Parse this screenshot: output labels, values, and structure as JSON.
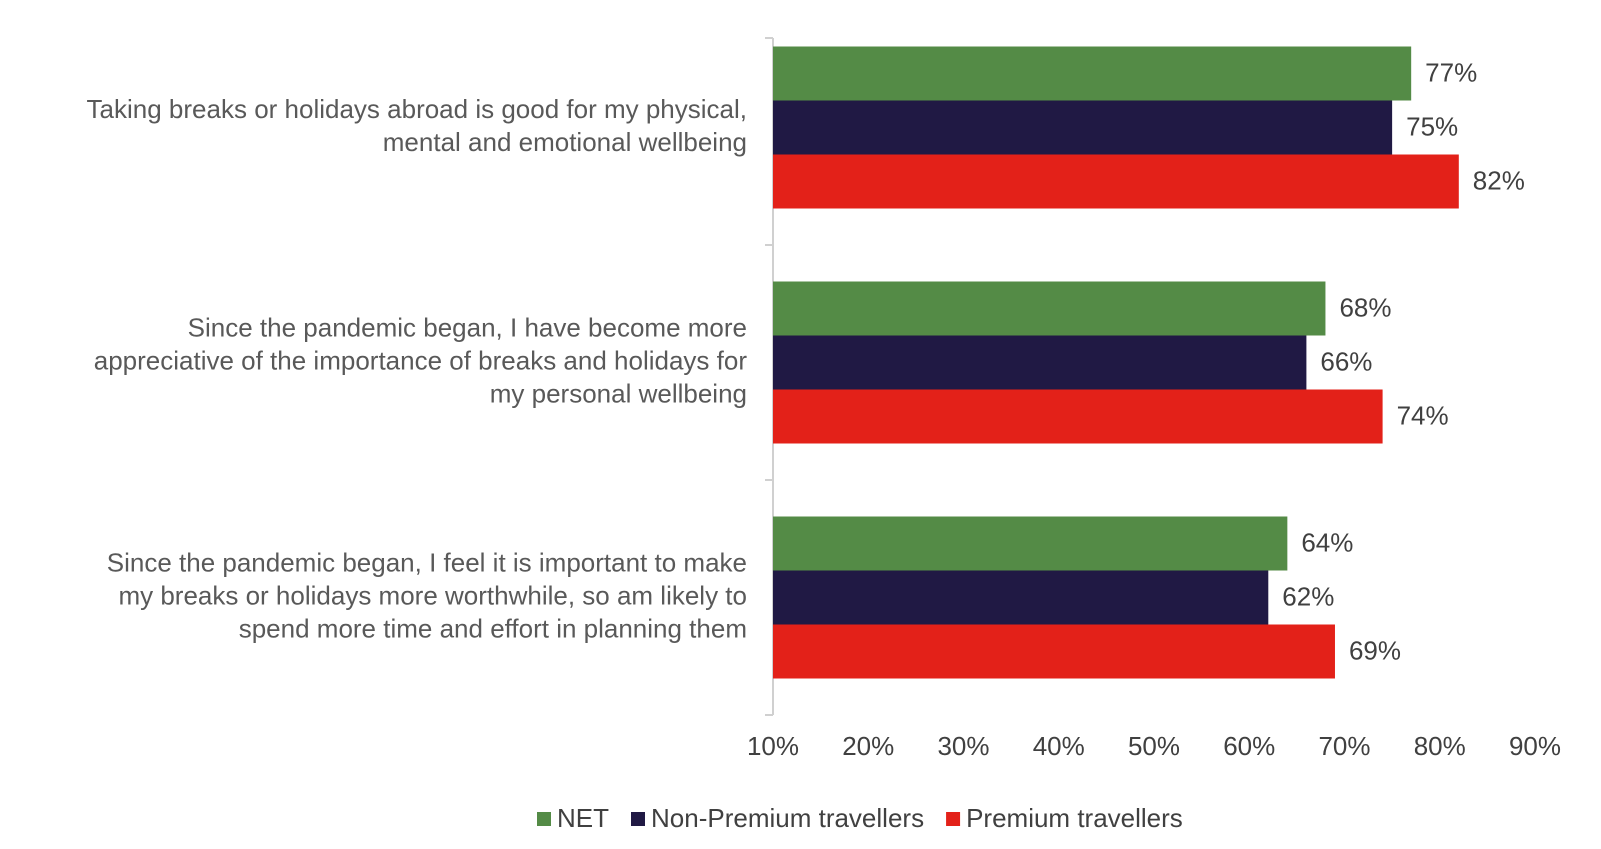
{
  "chart_data": {
    "type": "hbar",
    "categories": [
      [
        "Taking breaks or holidays abroad is good for my physical,",
        "mental and emotional wellbeing"
      ],
      [
        "Since the pandemic began, I have become more",
        "appreciative of the importance of breaks and holidays for",
        "my personal wellbeing"
      ],
      [
        "Since the pandemic began, I feel it is important to make",
        "my breaks or holidays more worthwhile, so am likely to",
        "spend more time and effort in planning them"
      ]
    ],
    "series": [
      {
        "name": "NET",
        "color": "#548b46",
        "values": [
          77,
          68,
          64
        ],
        "value_labels": [
          "77%",
          "68%",
          "64%"
        ]
      },
      {
        "name": "Non-Premium travellers",
        "color": "#201944",
        "values": [
          75,
          66,
          62
        ],
        "value_labels": [
          "75%",
          "66%",
          "62%"
        ]
      },
      {
        "name": "Premium travellers",
        "color": "#e32119",
        "values": [
          82,
          74,
          69
        ],
        "value_labels": [
          "82%",
          "74%",
          "69%"
        ]
      }
    ],
    "xlim": [
      10,
      90
    ],
    "xticks": [
      {
        "value": 10,
        "label": "10%"
      },
      {
        "value": 20,
        "label": "20%"
      },
      {
        "value": 30,
        "label": "30%"
      },
      {
        "value": 40,
        "label": "40%"
      },
      {
        "value": 50,
        "label": "50%"
      },
      {
        "value": 60,
        "label": "60%"
      },
      {
        "value": 70,
        "label": "70%"
      },
      {
        "value": 80,
        "label": "80%"
      },
      {
        "value": 90,
        "label": "90%"
      }
    ],
    "legend": "bottom"
  }
}
